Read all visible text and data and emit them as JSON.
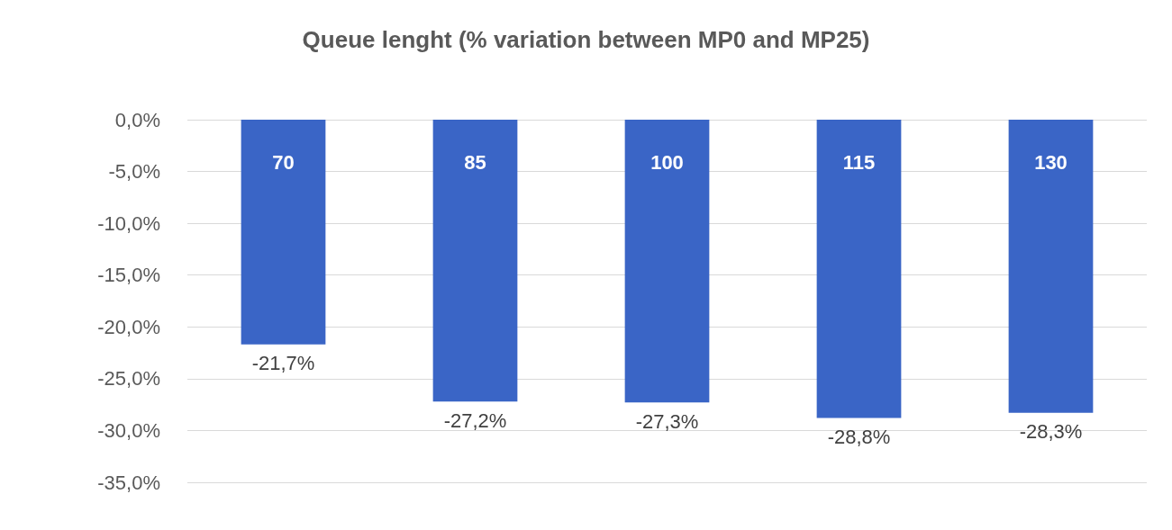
{
  "chart_data": {
    "type": "bar",
    "title": "Queue lenght (% variation between MP0 and MP25)",
    "categories": [
      "70",
      "85",
      "100",
      "115",
      "130"
    ],
    "values": [
      -21.7,
      -27.2,
      -27.3,
      -28.8,
      -28.3
    ],
    "value_labels": [
      "-21,7%",
      "-27,2%",
      "-27,3%",
      "-28,8%",
      "-28,3%"
    ],
    "color": "#3a65c6",
    "ylim": [
      -35,
      0
    ],
    "yticks": [
      {
        "value": 0,
        "label": "0,0%"
      },
      {
        "value": -5,
        "label": "-5,0%"
      },
      {
        "value": -10,
        "label": "-10,0%"
      },
      {
        "value": -15,
        "label": "-15,0%"
      },
      {
        "value": -20,
        "label": "-20,0%"
      },
      {
        "value": -25,
        "label": "-25,0%"
      },
      {
        "value": -30,
        "label": "-30,0%"
      },
      {
        "value": -35,
        "label": "-35,0%"
      }
    ],
    "grid": "y"
  }
}
